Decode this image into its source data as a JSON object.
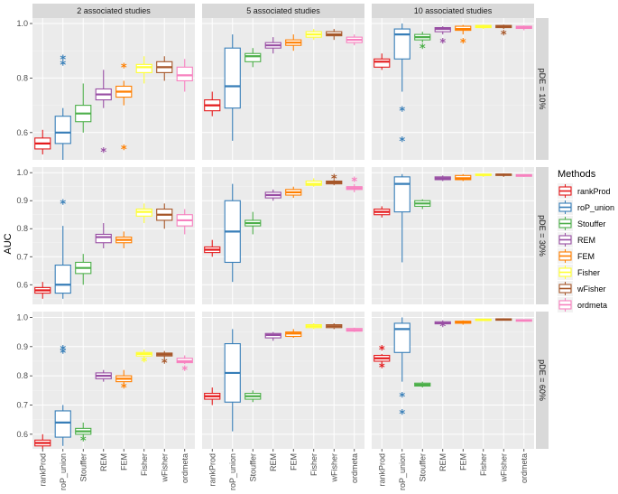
{
  "chart_data": {
    "type": "boxplot",
    "xlabel": "",
    "ylabel": "AUC",
    "methods": [
      "rankProd",
      "roP_union",
      "Stouffer",
      "REM",
      "FEM",
      "Fisher",
      "wFisher",
      "ordmeta"
    ],
    "colors": [
      "#E41A1C",
      "#377EB8",
      "#4DAF4A",
      "#984EA3",
      "#FF7F00",
      "#FFFF33",
      "#A65628",
      "#F781BF"
    ],
    "legend": {
      "title": "Methods",
      "position": "right"
    },
    "facet_cols": [
      "2 associated studies",
      "5 associated studies",
      "10 associated studies"
    ],
    "facet_rows": [
      "pDE = 10%",
      "pDE = 30%",
      "pDE = 60%"
    ],
    "row_ylim": [
      [
        0.5,
        1.02
      ],
      [
        0.53,
        1.02
      ],
      [
        0.55,
        1.02
      ]
    ],
    "row_yticks": [
      [
        0.6,
        0.8,
        1.0
      ],
      [
        0.6,
        0.7,
        0.8,
        0.9,
        1.0
      ],
      [
        0.6,
        0.7,
        0.8,
        0.9,
        1.0
      ]
    ],
    "panels": [
      [
        [
          {
            "min": 0.52,
            "q1": 0.54,
            "median": 0.56,
            "q3": 0.58,
            "max": 0.61,
            "outliers": []
          },
          {
            "min": 0.5,
            "q1": 0.56,
            "median": 0.6,
            "q3": 0.66,
            "max": 0.69,
            "outliers": [
              0.85,
              0.87
            ]
          },
          {
            "min": 0.6,
            "q1": 0.64,
            "median": 0.67,
            "q3": 0.7,
            "max": 0.78,
            "outliers": []
          },
          {
            "min": 0.69,
            "q1": 0.72,
            "median": 0.74,
            "q3": 0.76,
            "max": 0.83,
            "outliers": [
              0.53
            ]
          },
          {
            "min": 0.7,
            "q1": 0.73,
            "median": 0.75,
            "q3": 0.77,
            "max": 0.79,
            "outliers": [
              0.54,
              0.84
            ]
          },
          {
            "min": 0.78,
            "q1": 0.82,
            "median": 0.84,
            "q3": 0.85,
            "max": 0.88,
            "outliers": []
          },
          {
            "min": 0.79,
            "q1": 0.82,
            "median": 0.84,
            "q3": 0.86,
            "max": 0.88,
            "outliers": []
          },
          {
            "min": 0.75,
            "q1": 0.79,
            "median": 0.81,
            "q3": 0.84,
            "max": 0.87,
            "outliers": []
          }
        ],
        [
          {
            "min": 0.66,
            "q1": 0.68,
            "median": 0.7,
            "q3": 0.72,
            "max": 0.75,
            "outliers": []
          },
          {
            "min": 0.57,
            "q1": 0.69,
            "median": 0.77,
            "q3": 0.91,
            "max": 0.96,
            "outliers": []
          },
          {
            "min": 0.84,
            "q1": 0.86,
            "median": 0.88,
            "q3": 0.89,
            "max": 0.91,
            "outliers": []
          },
          {
            "min": 0.89,
            "q1": 0.91,
            "median": 0.92,
            "q3": 0.93,
            "max": 0.95,
            "outliers": []
          },
          {
            "min": 0.9,
            "q1": 0.92,
            "median": 0.93,
            "q3": 0.94,
            "max": 0.96,
            "outliers": []
          },
          {
            "min": 0.94,
            "q1": 0.95,
            "median": 0.96,
            "q3": 0.97,
            "max": 0.98,
            "outliers": []
          },
          {
            "min": 0.94,
            "q1": 0.955,
            "median": 0.96,
            "q3": 0.97,
            "max": 0.98,
            "outliers": []
          },
          {
            "min": 0.92,
            "q1": 0.93,
            "median": 0.94,
            "q3": 0.95,
            "max": 0.96,
            "outliers": []
          }
        ],
        [
          {
            "min": 0.83,
            "q1": 0.84,
            "median": 0.86,
            "q3": 0.87,
            "max": 0.89,
            "outliers": []
          },
          {
            "min": 0.75,
            "q1": 0.87,
            "median": 0.96,
            "q3": 0.98,
            "max": 1.0,
            "outliers": [
              0.57,
              0.68
            ]
          },
          {
            "min": 0.93,
            "q1": 0.94,
            "median": 0.95,
            "q3": 0.96,
            "max": 0.97,
            "outliers": [
              0.91
            ]
          },
          {
            "min": 0.96,
            "q1": 0.97,
            "median": 0.98,
            "q3": 0.985,
            "max": 0.99,
            "outliers": [
              0.93
            ]
          },
          {
            "min": 0.96,
            "q1": 0.975,
            "median": 0.98,
            "q3": 0.99,
            "max": 0.995,
            "outliers": [
              0.93
            ]
          },
          {
            "min": 0.98,
            "q1": 0.985,
            "median": 0.99,
            "q3": 0.993,
            "max": 0.996,
            "outliers": []
          },
          {
            "min": 0.98,
            "q1": 0.985,
            "median": 0.99,
            "q3": 0.993,
            "max": 0.996,
            "outliers": [
              0.96
            ]
          },
          {
            "min": 0.975,
            "q1": 0.982,
            "median": 0.985,
            "q3": 0.99,
            "max": 0.993,
            "outliers": []
          }
        ]
      ],
      [
        [
          {
            "min": 0.55,
            "q1": 0.57,
            "median": 0.58,
            "q3": 0.59,
            "max": 0.61,
            "outliers": []
          },
          {
            "min": 0.55,
            "q1": 0.57,
            "median": 0.6,
            "q3": 0.67,
            "max": 0.81,
            "outliers": [
              0.89
            ]
          },
          {
            "min": 0.6,
            "q1": 0.64,
            "median": 0.66,
            "q3": 0.68,
            "max": 0.71,
            "outliers": []
          },
          {
            "min": 0.73,
            "q1": 0.75,
            "median": 0.77,
            "q3": 0.78,
            "max": 0.82,
            "outliers": []
          },
          {
            "min": 0.73,
            "q1": 0.75,
            "median": 0.76,
            "q3": 0.77,
            "max": 0.79,
            "outliers": []
          },
          {
            "min": 0.82,
            "q1": 0.845,
            "median": 0.86,
            "q3": 0.87,
            "max": 0.89,
            "outliers": []
          },
          {
            "min": 0.8,
            "q1": 0.83,
            "median": 0.85,
            "q3": 0.87,
            "max": 0.89,
            "outliers": []
          },
          {
            "min": 0.78,
            "q1": 0.81,
            "median": 0.83,
            "q3": 0.85,
            "max": 0.87,
            "outliers": []
          }
        ],
        [
          {
            "min": 0.7,
            "q1": 0.715,
            "median": 0.725,
            "q3": 0.735,
            "max": 0.76,
            "outliers": []
          },
          {
            "min": 0.61,
            "q1": 0.68,
            "median": 0.79,
            "q3": 0.9,
            "max": 0.96,
            "outliers": []
          },
          {
            "min": 0.78,
            "q1": 0.81,
            "median": 0.82,
            "q3": 0.83,
            "max": 0.86,
            "outliers": []
          },
          {
            "min": 0.9,
            "q1": 0.91,
            "median": 0.92,
            "q3": 0.93,
            "max": 0.94,
            "outliers": []
          },
          {
            "min": 0.91,
            "q1": 0.92,
            "median": 0.93,
            "q3": 0.94,
            "max": 0.95,
            "outliers": []
          },
          {
            "min": 0.95,
            "q1": 0.955,
            "median": 0.96,
            "q3": 0.97,
            "max": 0.98,
            "outliers": []
          },
          {
            "min": 0.955,
            "q1": 0.96,
            "median": 0.965,
            "q3": 0.97,
            "max": 0.975,
            "outliers": [
              0.98
            ]
          },
          {
            "min": 0.93,
            "q1": 0.94,
            "median": 0.945,
            "q3": 0.95,
            "max": 0.96,
            "outliers": [
              0.97
            ]
          }
        ],
        [
          {
            "min": 0.84,
            "q1": 0.85,
            "median": 0.86,
            "q3": 0.87,
            "max": 0.88,
            "outliers": []
          },
          {
            "min": 0.68,
            "q1": 0.86,
            "median": 0.96,
            "q3": 0.985,
            "max": 0.995,
            "outliers": []
          },
          {
            "min": 0.87,
            "q1": 0.88,
            "median": 0.89,
            "q3": 0.9,
            "max": 0.905,
            "outliers": []
          },
          {
            "min": 0.97,
            "q1": 0.975,
            "median": 0.98,
            "q3": 0.985,
            "max": 0.99,
            "outliers": []
          },
          {
            "min": 0.97,
            "q1": 0.975,
            "median": 0.98,
            "q3": 0.99,
            "max": 0.995,
            "outliers": []
          },
          {
            "min": 0.985,
            "q1": 0.99,
            "median": 0.992,
            "q3": 0.995,
            "max": 0.997,
            "outliers": []
          },
          {
            "min": 0.985,
            "q1": 0.99,
            "median": 0.993,
            "q3": 0.995,
            "max": 0.997,
            "outliers": []
          },
          {
            "min": 0.985,
            "q1": 0.987,
            "median": 0.99,
            "q3": 0.993,
            "max": 0.995,
            "outliers": []
          }
        ]
      ],
      [
        [
          {
            "min": 0.55,
            "q1": 0.56,
            "median": 0.57,
            "q3": 0.58,
            "max": 0.6,
            "outliers": []
          },
          {
            "min": 0.56,
            "q1": 0.59,
            "median": 0.64,
            "q3": 0.68,
            "max": 0.7,
            "outliers": [
              0.88,
              0.89
            ]
          },
          {
            "min": 0.59,
            "q1": 0.6,
            "median": 0.61,
            "q3": 0.62,
            "max": 0.64,
            "outliers": [
              0.58
            ]
          },
          {
            "min": 0.78,
            "q1": 0.79,
            "median": 0.8,
            "q3": 0.81,
            "max": 0.82,
            "outliers": []
          },
          {
            "min": 0.77,
            "q1": 0.78,
            "median": 0.79,
            "q3": 0.8,
            "max": 0.82,
            "outliers": [
              0.76
            ]
          },
          {
            "min": 0.86,
            "q1": 0.868,
            "median": 0.875,
            "q3": 0.88,
            "max": 0.89,
            "outliers": [
              0.85
            ]
          },
          {
            "min": 0.86,
            "q1": 0.868,
            "median": 0.873,
            "q3": 0.878,
            "max": 0.885,
            "outliers": [
              0.845
            ]
          },
          {
            "min": 0.84,
            "q1": 0.845,
            "median": 0.85,
            "q3": 0.86,
            "max": 0.87,
            "outliers": [
              0.82
            ]
          }
        ],
        [
          {
            "min": 0.7,
            "q1": 0.72,
            "median": 0.73,
            "q3": 0.74,
            "max": 0.76,
            "outliers": []
          },
          {
            "min": 0.61,
            "q1": 0.71,
            "median": 0.81,
            "q3": 0.91,
            "max": 0.96,
            "outliers": []
          },
          {
            "min": 0.71,
            "q1": 0.72,
            "median": 0.73,
            "q3": 0.74,
            "max": 0.75,
            "outliers": []
          },
          {
            "min": 0.92,
            "q1": 0.93,
            "median": 0.94,
            "q3": 0.945,
            "max": 0.95,
            "outliers": []
          },
          {
            "min": 0.93,
            "q1": 0.935,
            "median": 0.945,
            "q3": 0.95,
            "max": 0.96,
            "outliers": []
          },
          {
            "min": 0.96,
            "q1": 0.965,
            "median": 0.97,
            "q3": 0.975,
            "max": 0.98,
            "outliers": []
          },
          {
            "min": 0.96,
            "q1": 0.965,
            "median": 0.97,
            "q3": 0.975,
            "max": 0.98,
            "outliers": []
          },
          {
            "min": 0.95,
            "q1": 0.953,
            "median": 0.957,
            "q3": 0.962,
            "max": 0.965,
            "outliers": []
          }
        ],
        [
          {
            "min": 0.84,
            "q1": 0.85,
            "median": 0.86,
            "q3": 0.87,
            "max": 0.875,
            "outliers": [
              0.83,
              0.89
            ]
          },
          {
            "min": 0.78,
            "q1": 0.88,
            "median": 0.96,
            "q3": 0.98,
            "max": 1.0,
            "outliers": [
              0.67,
              0.73
            ]
          },
          {
            "min": 0.76,
            "q1": 0.765,
            "median": 0.77,
            "q3": 0.775,
            "max": 0.78,
            "outliers": []
          },
          {
            "min": 0.975,
            "q1": 0.978,
            "median": 0.98,
            "q3": 0.985,
            "max": 0.99,
            "outliers": [
              0.97
            ]
          },
          {
            "min": 0.975,
            "q1": 0.98,
            "median": 0.983,
            "q3": 0.987,
            "max": 0.99,
            "outliers": []
          },
          {
            "min": 0.988,
            "q1": 0.99,
            "median": 0.992,
            "q3": 0.994,
            "max": 0.996,
            "outliers": []
          },
          {
            "min": 0.99,
            "q1": 0.992,
            "median": 0.993,
            "q3": 0.995,
            "max": 0.997,
            "outliers": []
          },
          {
            "min": 0.985,
            "q1": 0.987,
            "median": 0.99,
            "q3": 0.992,
            "max": 0.994,
            "outliers": []
          }
        ]
      ]
    ]
  }
}
